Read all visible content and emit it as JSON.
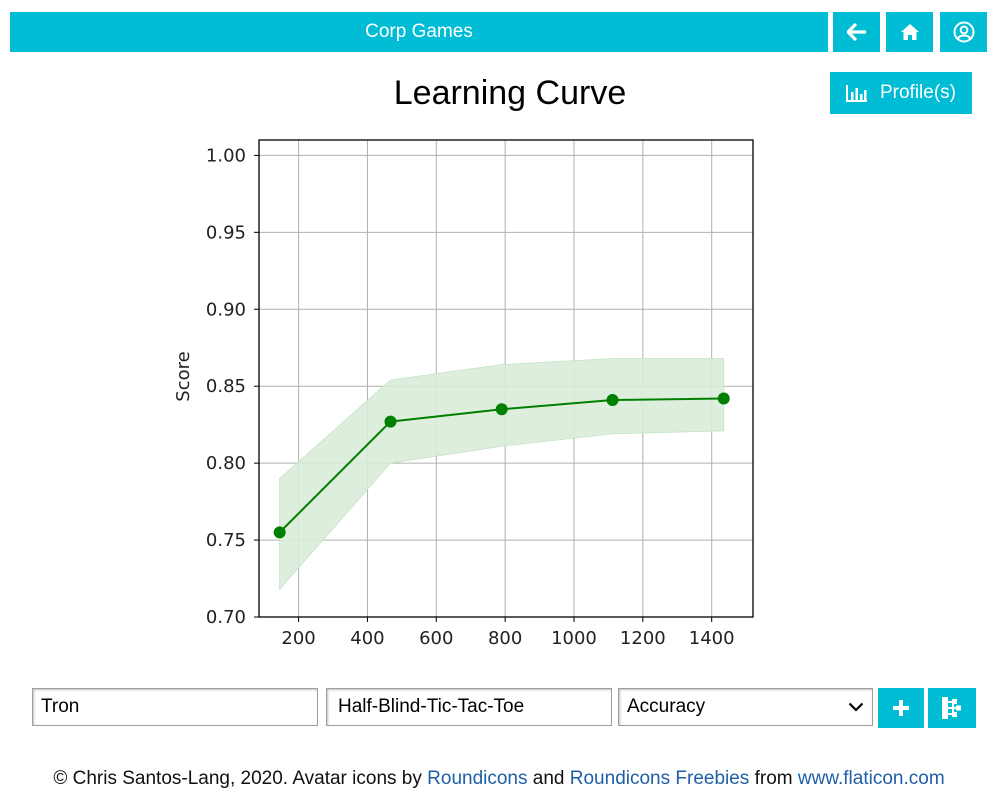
{
  "header": {
    "app_title": "Corp Games",
    "buttons": [
      {
        "icon": "arrow-left-icon"
      },
      {
        "icon": "home-icon"
      },
      {
        "icon": "user-circle-icon"
      }
    ]
  },
  "page": {
    "title": "Learning Curve",
    "profile_button": {
      "label": "Profile(s)",
      "icon": "bar-chart-icon"
    }
  },
  "chart_data": {
    "type": "line",
    "title": "",
    "xlabel": "",
    "ylabel": "Score",
    "xlim": [
      85,
      1520
    ],
    "ylim": [
      0.7,
      1.01
    ],
    "grid": true,
    "legend": "none",
    "x_ticks": [
      200,
      400,
      600,
      800,
      1000,
      1200,
      1400
    ],
    "x_tick_labels": [
      "200",
      "400",
      "600",
      "800",
      "1000",
      "1200",
      "1400"
    ],
    "y_ticks": [
      0.7,
      0.75,
      0.8,
      0.85,
      0.9,
      0.95,
      1.0
    ],
    "y_tick_labels": [
      "0.70",
      "0.75",
      "0.80",
      "0.85",
      "0.90",
      "0.95",
      "1.00"
    ],
    "x": [
      145,
      467,
      790,
      1112,
      1435
    ],
    "series": [
      {
        "values": [
          0.755,
          0.827,
          0.835,
          0.841,
          0.842
        ],
        "band_upper": [
          0.79,
          0.854,
          0.864,
          0.868,
          0.868
        ],
        "band_lower": [
          0.718,
          0.8,
          0.811,
          0.819,
          0.821
        ],
        "color": "#008000",
        "band_color": "#d9ecd9"
      }
    ]
  },
  "controls": {
    "player_value": "Tron",
    "game_value": "Half-Blind-Tic-Tac-Toe",
    "metric_selected": "Accuracy",
    "add_icon": "plus-icon",
    "tree_icon": "tree-structure-icon"
  },
  "footer": {
    "prefix": "© Chris Santos-Lang, 2020. Avatar icons by ",
    "link1": "Roundicons",
    "and": " and ",
    "link2": "Roundicons Freebies",
    "from": " from ",
    "link3": "www.flaticon.com"
  },
  "colors": {
    "accent": "#00bcd4",
    "series": "#008000",
    "link": "#1f5fa8"
  }
}
